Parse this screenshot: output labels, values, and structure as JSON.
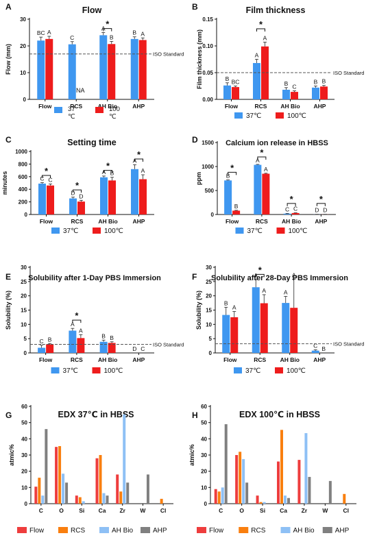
{
  "colors": {
    "flow": "#ee3d3d",
    "rcs": "#f97f0f",
    "ahbio": "#8ec0f5",
    "ahp": "#808080",
    "t37": "#3f97f0",
    "t100": "#ee1c1c",
    "dash": "#555555"
  },
  "chart_data": [
    {
      "id": "A",
      "letter": "A",
      "type": "bar",
      "title": "Flow",
      "ylabel": "Flow (mm)",
      "ylim": [
        0,
        30
      ],
      "yticks": [
        0,
        10,
        20,
        30
      ],
      "categories": [
        "Flow",
        "RCS",
        "AH Bio",
        "AHP"
      ],
      "series": [
        {
          "name": "37 ℃",
          "color": "t37",
          "values": [
            22,
            20.6,
            24,
            22.6
          ],
          "errors": [
            1.3,
            1,
            1,
            0.8
          ],
          "letters": [
            "BC",
            "C",
            "A",
            "B"
          ]
        },
        {
          "name": "100 ℃",
          "color": "t100",
          "values": [
            22.6,
            0,
            20.7,
            22.2
          ],
          "errors": [
            1,
            0,
            1,
            0.8
          ],
          "letters": [
            "A",
            "",
            "B",
            "A"
          ]
        }
      ],
      "refline": {
        "value": 17,
        "label": "ISO Standard"
      },
      "annotations": [
        {
          "text": "NA",
          "category": 1,
          "series": 1,
          "value": 2
        }
      ],
      "brackets": [
        {
          "category": 2,
          "top": 26.5,
          "text": "*"
        }
      ]
    },
    {
      "id": "B",
      "letter": "B",
      "type": "bar",
      "title": "Film thickness",
      "ylabel": "Film thickness (mm)",
      "ylim": [
        0,
        0.15
      ],
      "yticks": [
        "0.00",
        "0.05",
        "0.10",
        "0.15"
      ],
      "categories": [
        "Flow",
        "RCS",
        "AH Bio",
        "AHP"
      ],
      "series": [
        {
          "name": "37℃",
          "color": "t37",
          "values": [
            0.026,
            0.068,
            0.018,
            0.022
          ],
          "errors": [
            0.005,
            0.007,
            0.004,
            0.003
          ],
          "letters": [
            "B",
            "A",
            "B",
            "B"
          ]
        },
        {
          "name": "100℃",
          "color": "t100",
          "values": [
            0.023,
            0.099,
            0.014,
            0.024
          ],
          "errors": [
            0.002,
            0.008,
            0.002,
            0.002
          ],
          "letters": [
            "BC",
            "A",
            "C",
            "B"
          ]
        }
      ],
      "refline": {
        "value": 0.05,
        "label": "ISO Standard"
      },
      "annotations": [],
      "brackets": [
        {
          "category": 1,
          "top": 0.132,
          "text": "*"
        }
      ]
    },
    {
      "id": "C",
      "letter": "C",
      "type": "bar",
      "title": "Setting time",
      "ylabel": "minutes",
      "ylim": [
        0,
        1000
      ],
      "yticks": [
        0,
        200,
        400,
        600,
        800,
        1000
      ],
      "categories": [
        "Flow",
        "RCS",
        "AH Bio",
        "AHP"
      ],
      "series": [
        {
          "name": "37℃",
          "color": "t37",
          "values": [
            490,
            255,
            590,
            720
          ],
          "errors": [
            15,
            20,
            20,
            70
          ],
          "letters": [
            "C",
            "D",
            "A",
            "A"
          ]
        },
        {
          "name": "100℃",
          "color": "t100",
          "values": [
            460,
            205,
            540,
            560
          ],
          "errors": [
            25,
            20,
            50,
            70
          ],
          "letters": [
            "C",
            "D",
            "B",
            "A"
          ]
        }
      ],
      "refline": null,
      "annotations": [],
      "brackets": [
        {
          "category": 0,
          "top": 620,
          "text": "*"
        },
        {
          "category": 1,
          "top": 390,
          "text": "*"
        },
        {
          "category": 2,
          "top": 700,
          "text": "*"
        },
        {
          "category": 3,
          "top": 880,
          "text": "*"
        }
      ]
    },
    {
      "id": "D",
      "letter": "D",
      "type": "bar",
      "title": "Calcium ion release in HBSS",
      "ylabel": "ppm",
      "ylim": [
        0,
        1500
      ],
      "yticks": [
        0,
        500,
        1000,
        1500
      ],
      "categories": [
        "Flow",
        "RCS",
        "AH Bio",
        "AHP"
      ],
      "series": [
        {
          "name": "37℃",
          "color": "t37",
          "values": [
            710,
            1035,
            18,
            2
          ],
          "errors": [
            10,
            10,
            5,
            2
          ],
          "letters": [
            "B",
            "A",
            "C",
            "D"
          ]
        },
        {
          "name": "100℃",
          "color": "t100",
          "values": [
            80,
            850,
            30,
            2
          ],
          "errors": [
            8,
            10,
            5,
            2
          ],
          "letters": [
            "B",
            "A",
            "C",
            "D"
          ]
        }
      ],
      "refline": null,
      "annotations": [],
      "brackets": [
        {
          "category": 0,
          "top": 880,
          "text": "*"
        },
        {
          "category": 1,
          "top": 1200,
          "text": "*"
        },
        {
          "category": 2,
          "top": 230,
          "text": "*"
        },
        {
          "category": 3,
          "top": 230,
          "text": "*"
        }
      ]
    },
    {
      "id": "E",
      "letter": "E",
      "type": "bar",
      "title": "Solubility after 1-Day PBS Immersion",
      "ylabel": "Solubility (%)",
      "ylim": [
        0,
        30
      ],
      "yticks": [
        0,
        5,
        10,
        15,
        20,
        25,
        30
      ],
      "categories": [
        "Flow",
        "RCS",
        "AH Bio",
        "AHP"
      ],
      "series": [
        {
          "name": "37℃",
          "color": "t37",
          "values": [
            1.8,
            7.8,
            3.9,
            0
          ],
          "errors": [
            0.9,
            0.8,
            0.6,
            0
          ],
          "letters": [
            "C",
            "A",
            "B",
            "D"
          ]
        },
        {
          "name": "100℃",
          "color": "t100",
          "values": [
            3,
            5.2,
            3.5,
            0
          ],
          "errors": [
            0.3,
            1.2,
            0.4,
            0
          ],
          "letters": [
            "B",
            "A",
            "B",
            "C"
          ]
        }
      ],
      "refline": {
        "value": 3,
        "label": "ISO Standard"
      },
      "annotations": [],
      "brackets": [
        {
          "category": 1,
          "top": 11.5,
          "text": "*"
        }
      ]
    },
    {
      "id": "F",
      "letter": "F",
      "type": "bar",
      "title": "Solubility after 28-Day PBS Immersion",
      "ylabel": "Solubility (%)",
      "ylim": [
        0,
        30
      ],
      "yticks": [
        0,
        5,
        10,
        15,
        20,
        25,
        30
      ],
      "categories": [
        "Flow",
        "RCS",
        "AH Bio",
        "AHP"
      ],
      "series": [
        {
          "name": "37℃",
          "color": "t37",
          "values": [
            13.3,
            23,
            17.5,
            0.8
          ],
          "errors": [
            2.7,
            2.7,
            2.3,
            0.3
          ],
          "letters": [
            "B",
            "A",
            "A",
            "C"
          ]
        },
        {
          "name": "100℃",
          "color": "t100",
          "values": [
            12.5,
            17.4,
            15.8,
            0
          ],
          "errors": [
            2,
            3,
            10,
            0
          ],
          "letters": [
            "A",
            "A",
            "A",
            "B"
          ]
        }
      ],
      "refline": {
        "value": 3.2,
        "label": "ISO Standard"
      },
      "annotations": [],
      "brackets": [
        {
          "category": 1,
          "top": 27.5,
          "text": "*"
        }
      ]
    },
    {
      "id": "G",
      "letter": "G",
      "type": "bar",
      "title": "EDX 37℃ in HBSS",
      "ylabel": "atmic%",
      "ylim": [
        0,
        60
      ],
      "yticks": [
        0,
        10,
        20,
        30,
        40,
        50,
        60
      ],
      "categories": [
        "C",
        "O",
        "Si",
        "Ca",
        "Zr",
        "W",
        "Cl"
      ],
      "series": [
        {
          "name": "Flow",
          "color": "flow",
          "values": [
            10.5,
            35,
            5,
            28,
            18,
            0,
            0
          ]
        },
        {
          "name": "RCS",
          "color": "rcs",
          "values": [
            16,
            35.5,
            4,
            30,
            7.5,
            0,
            3
          ]
        },
        {
          "name": "AH Bio",
          "color": "ahbio",
          "values": [
            5,
            18.5,
            1.5,
            6.5,
            55,
            0,
            0
          ]
        },
        {
          "name": "AHP",
          "color": "ahp",
          "values": [
            46,
            13,
            0,
            5,
            13,
            18,
            0
          ]
        }
      ],
      "refline": null,
      "annotations": [],
      "brackets": []
    },
    {
      "id": "H",
      "letter": "H",
      "type": "bar",
      "title": "EDX 100℃ in HBSS",
      "ylabel": "atmic%",
      "ylim": [
        0,
        60
      ],
      "yticks": [
        0,
        10,
        20,
        30,
        40,
        50,
        60
      ],
      "categories": [
        "C",
        "O",
        "Si",
        "Ca",
        "Zr",
        "W",
        "Cl"
      ],
      "series": [
        {
          "name": "Flow",
          "color": "flow",
          "values": [
            9,
            30,
            5,
            26,
            27,
            0,
            0
          ]
        },
        {
          "name": "RCS",
          "color": "rcs",
          "values": [
            7.5,
            32,
            1,
            45.5,
            0,
            0,
            6
          ]
        },
        {
          "name": "AH Bio",
          "color": "ahbio",
          "values": [
            10,
            27.5,
            1,
            5,
            43.5,
            0,
            0
          ]
        },
        {
          "name": "AHP",
          "color": "ahp",
          "values": [
            49,
            13,
            0,
            3.5,
            16.5,
            14,
            0
          ]
        }
      ],
      "refline": null,
      "annotations": [],
      "brackets": []
    }
  ]
}
